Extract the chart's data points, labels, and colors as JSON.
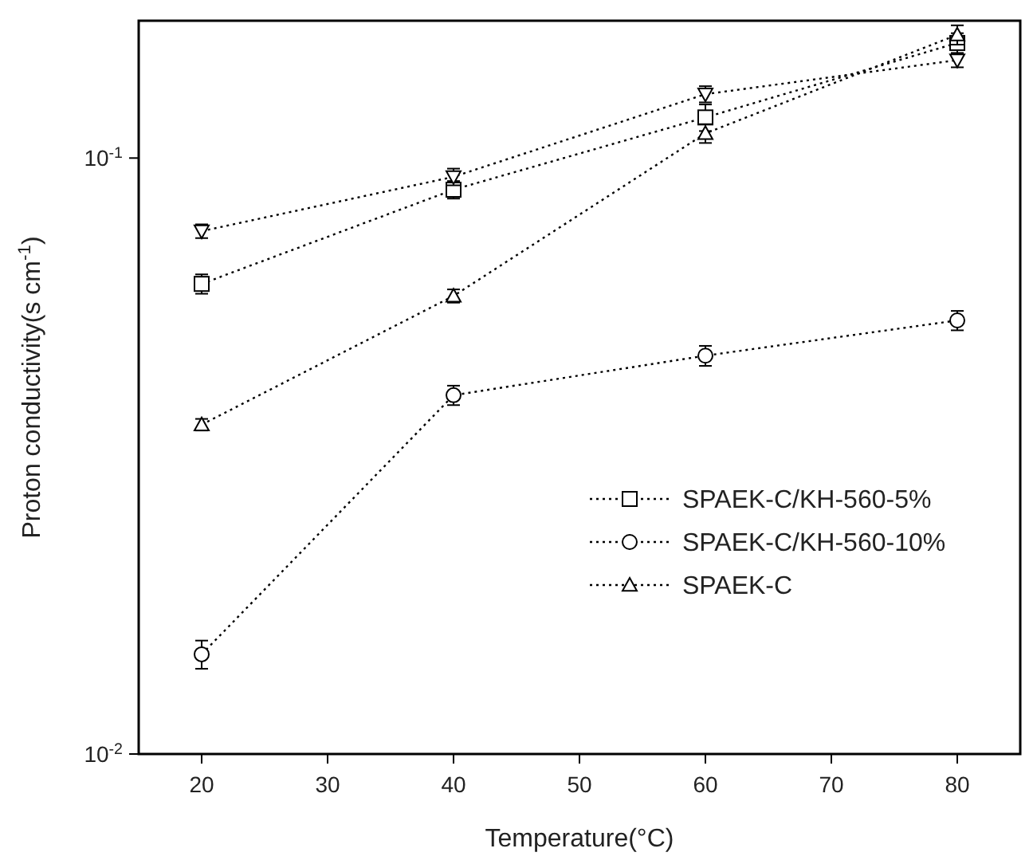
{
  "chart_data": {
    "type": "line",
    "xlabel": "Temperature(°C)",
    "ylabel": "Proton conductivity(s cm$^{-1}$)",
    "x": [
      20,
      40,
      60,
      80
    ],
    "xlim": [
      15,
      85
    ],
    "xticks": [
      20,
      30,
      40,
      50,
      60,
      70,
      80
    ],
    "ylim": [
      0.01,
      0.17
    ],
    "yticks": [
      {
        "value": 0.01,
        "label": "10$^{-2}$"
      },
      {
        "value": 0.1,
        "label": "10$^{-1}$"
      }
    ],
    "log": "y",
    "grid": false,
    "legend": "right",
    "line_style": "dotted",
    "series": [
      {
        "name": "SPAEK-C/KH-560-5%",
        "color": "#000000",
        "marker": "square",
        "values": [
          0.0615,
          0.0885,
          0.117,
          0.156
        ],
        "errors": [
          0.0023,
          0.003,
          0.006,
          0.006
        ]
      },
      {
        "name": "SPAEK-C/KH-560-10%",
        "color": "#000000",
        "marker": "circle",
        "values": [
          0.0147,
          0.04,
          0.0466,
          0.0534
        ],
        "errors": [
          0.0008,
          0.0015,
          0.0018,
          0.002
        ]
      },
      {
        "name": "SPAEK-C",
        "color": "#000000",
        "marker": "triangle",
        "values": [
          0.0357,
          0.0587,
          0.11,
          0.161
        ],
        "errors": [
          0.0008,
          0.0015,
          0.004,
          0.006
        ]
      },
      {
        "color": "#000000",
        "marker": "triangle-down",
        "values": [
          0.0754,
          0.093,
          0.128,
          0.146
        ],
        "errors": [
          0.002,
          0.003,
          0.004,
          0.004
        ]
      }
    ]
  }
}
